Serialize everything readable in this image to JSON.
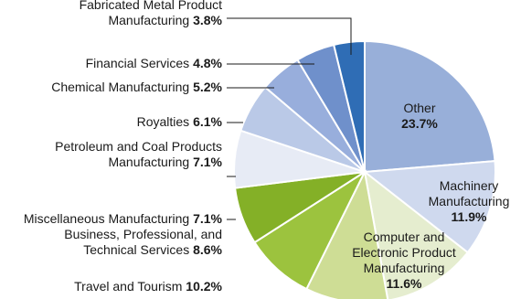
{
  "chart_data": {
    "type": "pie",
    "title": "",
    "slices": [
      {
        "label": "Other",
        "value": 23.7,
        "value_label": "23.7%",
        "color": "#98afd9"
      },
      {
        "label": "Machinery Manufacturing",
        "value": 11.9,
        "value_label": "11.9%",
        "color": "#cfd9ee"
      },
      {
        "label": "Computer and Electronic Product Manufacturing",
        "value": 11.6,
        "value_label": "11.6%",
        "color": "#e5edcf"
      },
      {
        "label": "Travel and Tourism",
        "value": 10.2,
        "value_label": "10.2%",
        "color": "#cedd95"
      },
      {
        "label": "Business, Professional, and Technical Services",
        "value": 8.6,
        "value_label": "8.6%",
        "color": "#9cc33e"
      },
      {
        "label": "Miscellaneous Manufacturing",
        "value": 7.1,
        "value_label": "7.1%",
        "color": "#84b027"
      },
      {
        "label": "Petroleum and Coal Products Manufacturing",
        "value": 7.1,
        "value_label": "7.1%",
        "color": "#e7ebf5"
      },
      {
        "label": "Royalties",
        "value": 6.1,
        "value_label": "6.1%",
        "color": "#bac9e7"
      },
      {
        "label": "Chemical Manufacturing",
        "value": 5.2,
        "value_label": "5.2%",
        "color": "#98aedc"
      },
      {
        "label": "Financial Services",
        "value": 4.8,
        "value_label": "4.8%",
        "color": "#6f90cb"
      },
      {
        "label": "Fabricated Metal Product Manufacturing",
        "value": 3.8,
        "value_label": "3.8%",
        "color": "#2f6db5"
      }
    ]
  }
}
